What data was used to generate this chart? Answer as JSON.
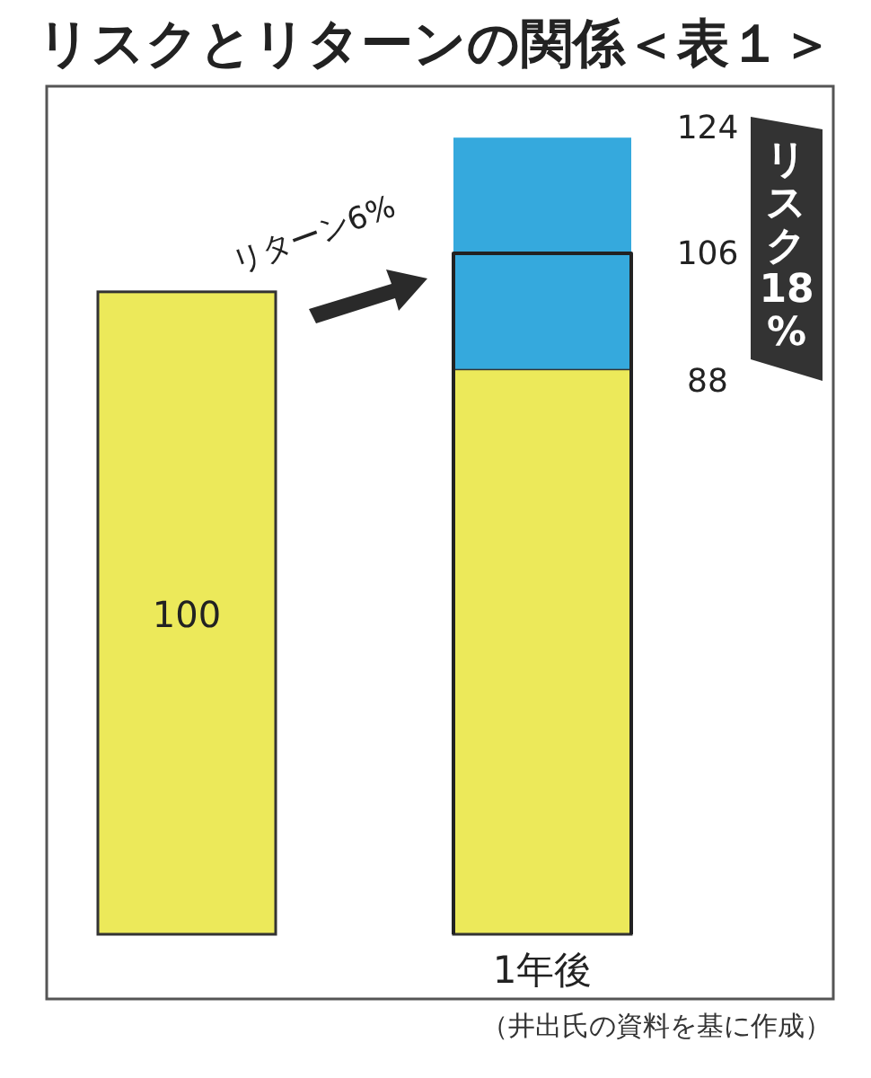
{
  "chart_data": {
    "type": "bar",
    "title": "リスクとリターンの関係＜表１＞",
    "categories": [
      null,
      "1年後"
    ],
    "stacked": true,
    "series": [
      {
        "color": "#ece95a",
        "values": [
          100,
          88
        ],
        "value_labels": [
          "100",
          null
        ]
      },
      {
        "color": "#35a9dd",
        "values": [
          null,
          36
        ]
      }
    ],
    "ylim": [
      0,
      132
    ],
    "ref_lines": [
      {
        "axis": "y",
        "value": 106,
        "label": "106",
        "color": "#222222"
      }
    ],
    "tick_labels": "x",
    "annotations": [
      "124",
      "88",
      "リターン6%",
      "リスク18%",
      "（井出氏の資料を基に作成）"
    ]
  }
}
